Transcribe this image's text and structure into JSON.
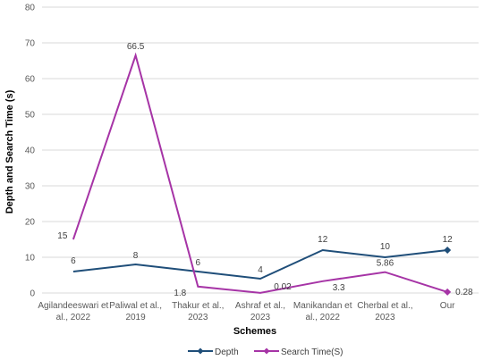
{
  "chart_data": {
    "type": "line",
    "xlabel": "Schemes",
    "ylabel": "Depth and Search Time (s)",
    "ylim": [
      0,
      80
    ],
    "yticks": [
      "0",
      "10",
      "20",
      "30",
      "40",
      "50",
      "60",
      "70",
      "80"
    ],
    "categories": [
      [
        "Agilandeeswari et",
        "al., 2022"
      ],
      [
        "Paliwal et al.,",
        "2019"
      ],
      [
        "Thakur et al.,",
        "2023"
      ],
      [
        "Ashraf et al.,",
        "2023"
      ],
      [
        "Manikandan et",
        "al., 2022"
      ],
      [
        "Cherbal et al.,",
        "2023"
      ],
      [
        "Our"
      ]
    ],
    "series": [
      {
        "name": "Depth",
        "color": "#1f4e79",
        "values": [
          6,
          8,
          6,
          4,
          12,
          10,
          12
        ],
        "labels": [
          "6",
          "8",
          "6",
          "4",
          "12",
          "10",
          "12"
        ]
      },
      {
        "name": "Search Time(S)",
        "color": "#a634a6",
        "values": [
          15,
          66.5,
          1.8,
          0.02,
          3.3,
          5.86,
          0.28
        ],
        "labels": [
          "15",
          "66.5",
          "1.8",
          "0.02",
          "3.3",
          "5.86",
          "0.28"
        ]
      }
    ],
    "grid": true,
    "legend_position": "bottom"
  }
}
